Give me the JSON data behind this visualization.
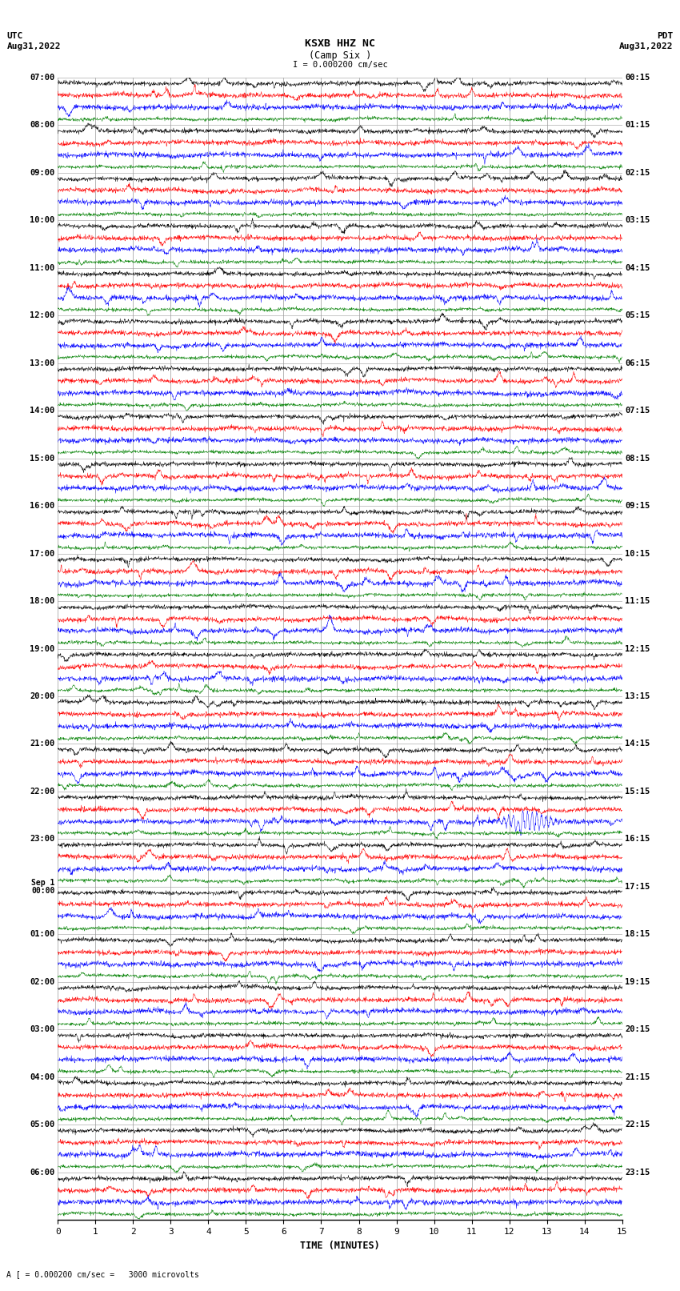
{
  "title_line1": "KSXB HHZ NC",
  "title_line2": "(Camp Six )",
  "scale_text": "I = 0.000200 cm/sec",
  "left_header_line1": "UTC",
  "left_header_line2": "Aug31,2022",
  "right_header_line1": "PDT",
  "right_header_line2": "Aug31,2022",
  "xlabel": "TIME (MINUTES)",
  "footer_text": "A [ = 0.000200 cm/sec =   3000 microvolts",
  "utc_labels": [
    "07:00",
    "08:00",
    "09:00",
    "10:00",
    "11:00",
    "12:00",
    "13:00",
    "14:00",
    "15:00",
    "16:00",
    "17:00",
    "18:00",
    "19:00",
    "20:00",
    "21:00",
    "22:00",
    "23:00",
    "Sep 1\n00:00",
    "01:00",
    "02:00",
    "03:00",
    "04:00",
    "05:00",
    "06:00"
  ],
  "pdt_labels": [
    "00:15",
    "01:15",
    "02:15",
    "03:15",
    "04:15",
    "05:15",
    "06:15",
    "07:15",
    "08:15",
    "09:15",
    "10:15",
    "11:15",
    "12:15",
    "13:15",
    "14:15",
    "15:15",
    "16:15",
    "17:15",
    "18:15",
    "19:15",
    "20:15",
    "21:15",
    "22:15",
    "23:15"
  ],
  "n_hour_groups": 24,
  "traces_per_group": 4,
  "time_minutes": 15,
  "bg_color": "#ffffff",
  "trace_colors": [
    "black",
    "red",
    "blue",
    "green"
  ],
  "grid_color": "#999999",
  "noise_amplitude": [
    0.25,
    0.28,
    0.3,
    0.2
  ],
  "special_group": 15,
  "special_trace": 2,
  "special_time": 12.5
}
